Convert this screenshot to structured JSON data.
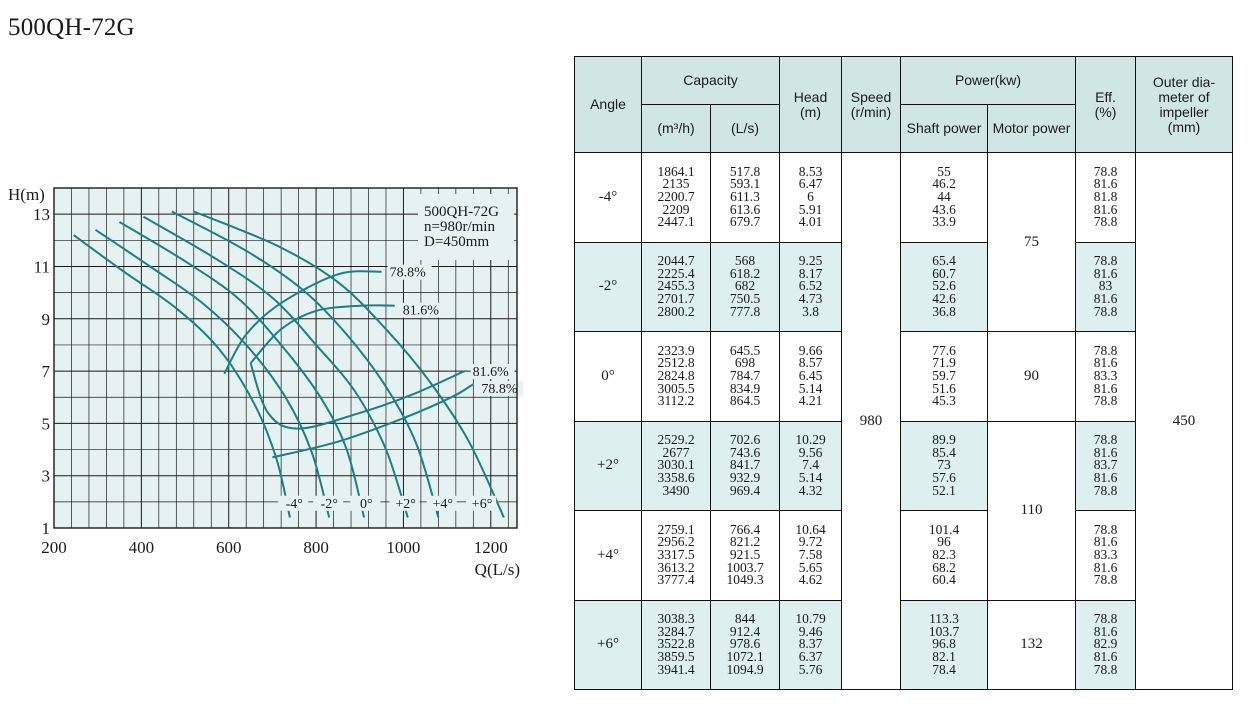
{
  "title": "500QH-72G",
  "colors": {
    "curve": "#1b7f86",
    "chart_bg": "#e6f2f1",
    "header_bg": "#cfe6e5",
    "row_tint": "#ddefee"
  },
  "chart_data": {
    "type": "line",
    "xlabel": "Q(L/s)",
    "ylabel": "H(m)",
    "xlim": [
      200,
      1260
    ],
    "ylim": [
      1,
      14
    ],
    "x_ticks": [
      "200",
      "400",
      "600",
      "800",
      "1000",
      "1200"
    ],
    "y_ticks": [
      "1",
      "3",
      "5",
      "7",
      "9",
      "11",
      "13"
    ],
    "grid": true,
    "legend": [
      "500QH-72G",
      "n=980r/min",
      "D=450mm"
    ],
    "legend_position": "top-right",
    "series": [
      {
        "name": "-4°",
        "points": [
          [
            245,
            12.2
          ],
          [
            360,
            10.8
          ],
          [
            480,
            9.4
          ],
          [
            580,
            7.8
          ],
          [
            660,
            5.7
          ],
          [
            710,
            3.6
          ],
          [
            740,
            1.4
          ]
        ]
      },
      {
        "name": "-2°",
        "points": [
          [
            295,
            12.4
          ],
          [
            420,
            11.0
          ],
          [
            540,
            9.6
          ],
          [
            640,
            8.0
          ],
          [
            730,
            6.0
          ],
          [
            790,
            3.9
          ],
          [
            830,
            1.4
          ]
        ]
      },
      {
        "name": "0°",
        "points": [
          [
            350,
            12.7
          ],
          [
            500,
            11.2
          ],
          [
            620,
            9.8
          ],
          [
            720,
            8.0
          ],
          [
            810,
            6.0
          ],
          [
            870,
            4.0
          ],
          [
            910,
            1.4
          ]
        ]
      },
      {
        "name": "+2°",
        "points": [
          [
            405,
            12.9
          ],
          [
            570,
            11.3
          ],
          [
            700,
            9.8
          ],
          [
            800,
            8.0
          ],
          [
            890,
            6.2
          ],
          [
            960,
            4.0
          ],
          [
            1010,
            1.4
          ]
        ]
      },
      {
        "name": "+4°",
        "points": [
          [
            470,
            13.1
          ],
          [
            640,
            11.6
          ],
          [
            770,
            10.1
          ],
          [
            870,
            8.4
          ],
          [
            960,
            6.4
          ],
          [
            1030,
            4.2
          ],
          [
            1080,
            1.4
          ]
        ]
      },
      {
        "name": "+6°",
        "points": [
          [
            520,
            13.1
          ],
          [
            710,
            11.8
          ],
          [
            850,
            10.4
          ],
          [
            960,
            8.6
          ],
          [
            1060,
            6.6
          ],
          [
            1150,
            4.3
          ],
          [
            1230,
            1.4
          ]
        ]
      }
    ],
    "efficiency_contours": [
      {
        "label": "78.8%",
        "points": [
          [
            590,
            6.9
          ],
          [
            640,
            8.4
          ],
          [
            720,
            9.6
          ],
          [
            850,
            10.7
          ],
          [
            950,
            10.8
          ]
        ]
      },
      {
        "label": "81.6%",
        "points": [
          [
            650,
            7.3
          ],
          [
            720,
            8.6
          ],
          [
            800,
            9.3
          ],
          [
            900,
            9.5
          ],
          [
            980,
            9.5
          ]
        ]
      },
      {
        "label": "81.6%",
        "points": [
          [
            650,
            7.3
          ],
          [
            690,
            5.4
          ],
          [
            760,
            4.8
          ],
          [
            900,
            5.4
          ],
          [
            1020,
            6.1
          ],
          [
            1140,
            7.0
          ]
        ]
      },
      {
        "label": "78.8%",
        "points": [
          [
            700,
            3.7
          ],
          [
            850,
            4.3
          ],
          [
            1000,
            5.2
          ],
          [
            1110,
            6.0
          ],
          [
            1160,
            6.5
          ]
        ]
      }
    ],
    "blade_angle_labels": [
      "-4°",
      "-2°",
      "0°",
      "+2°",
      "+4°",
      "+6°"
    ],
    "blade_angle_label_x": [
      750,
      830,
      915,
      1005,
      1090,
      1180
    ]
  },
  "table": {
    "headers": {
      "angle": "Angle",
      "capacity": "Capacity",
      "capacity_m3h": "(m³/h)",
      "capacity_ls": "(L/s)",
      "head": "Head\n(m)",
      "speed": "Speed\n(r/min)",
      "power": "Power(kw)",
      "shaft_power": "Shaft power",
      "motor_power": "Motor power",
      "eff": "Eff.\n(%)",
      "outer_diameter": "Outer dia-\nmeter of\nimpeller\n(mm)"
    },
    "speed": "980",
    "outer_diameter": "450",
    "rows": [
      {
        "angle": "-4°",
        "q_m3h": [
          "1864.1",
          "2135",
          "2200.7",
          "2209",
          "2447.1"
        ],
        "q_ls": [
          "517.8",
          "593.1",
          "611.3",
          "613.6",
          "679.7"
        ],
        "head": [
          "8.53",
          "6.47",
          "6",
          "5.91",
          "4.01"
        ],
        "shaft": [
          "55",
          "46.2",
          "44",
          "43.6",
          "33.9"
        ],
        "eff": [
          "78.8",
          "81.6",
          "81.8",
          "81.6",
          "78.8"
        ]
      },
      {
        "angle": "-2°",
        "q_m3h": [
          "2044.7",
          "2225.4",
          "2455.3",
          "2701.7",
          "2800.2"
        ],
        "q_ls": [
          "568",
          "618.2",
          "682",
          "750.5",
          "777.8"
        ],
        "head": [
          "9.25",
          "8.17",
          "6.52",
          "4.73",
          "3.8"
        ],
        "shaft": [
          "65.4",
          "60.7",
          "52.6",
          "42.6",
          "36.8"
        ],
        "eff": [
          "78.8",
          "81.6",
          "83",
          "81.6",
          "78.8"
        ]
      },
      {
        "angle": "0°",
        "q_m3h": [
          "2323.9",
          "2512.8",
          "2824.8",
          "3005.5",
          "3112.2"
        ],
        "q_ls": [
          "645.5",
          "698",
          "784.7",
          "834.9",
          "864.5"
        ],
        "head": [
          "9.66",
          "8.57",
          "6.45",
          "5.14",
          "4.21"
        ],
        "shaft": [
          "77.6",
          "71.9",
          "59.7",
          "51.6",
          "45.3"
        ],
        "eff": [
          "78.8",
          "81.6",
          "83.3",
          "81.6",
          "78.8"
        ]
      },
      {
        "angle": "+2°",
        "q_m3h": [
          "2529.2",
          "2677",
          "3030.1",
          "3358.6",
          "3490"
        ],
        "q_ls": [
          "702.6",
          "743.6",
          "841.7",
          "932.9",
          "969.4"
        ],
        "head": [
          "10.29",
          "9.56",
          "7.4",
          "5.14",
          "4.32"
        ],
        "shaft": [
          "89.9",
          "85.4",
          "73",
          "57.6",
          "52.1"
        ],
        "eff": [
          "78.8",
          "81.6",
          "83.7",
          "81.6",
          "78.8"
        ]
      },
      {
        "angle": "+4°",
        "q_m3h": [
          "2759.1",
          "2956.2",
          "3317.5",
          "3613.2",
          "3777.4"
        ],
        "q_ls": [
          "766.4",
          "821.2",
          "921.5",
          "1003.7",
          "1049.3"
        ],
        "head": [
          "10.64",
          "9.72",
          "7.58",
          "5.65",
          "4.62"
        ],
        "shaft": [
          "101.4",
          "96",
          "82.3",
          "68.2",
          "60.4"
        ],
        "eff": [
          "78.8",
          "81.6",
          "83.3",
          "81.6",
          "78.8"
        ]
      },
      {
        "angle": "+6°",
        "q_m3h": [
          "3038.3",
          "3284.7",
          "3522.8",
          "3859.5",
          "3941.4"
        ],
        "q_ls": [
          "844",
          "912.4",
          "978.6",
          "1072.1",
          "1094.9"
        ],
        "head": [
          "10.79",
          "9.46",
          "8.37",
          "6.37",
          "5.76"
        ],
        "shaft": [
          "113.3",
          "103.7",
          "96.8",
          "82.1",
          "78.4"
        ],
        "eff": [
          "78.8",
          "81.6",
          "82.9",
          "81.6",
          "78.8"
        ]
      }
    ],
    "motor_power": [
      {
        "value": "75",
        "rows": [
          0,
          1
        ]
      },
      {
        "value": "90",
        "rows": [
          2
        ]
      },
      {
        "value": "110",
        "rows": [
          3,
          4
        ]
      },
      {
        "value": "132",
        "rows": [
          5
        ]
      }
    ]
  }
}
